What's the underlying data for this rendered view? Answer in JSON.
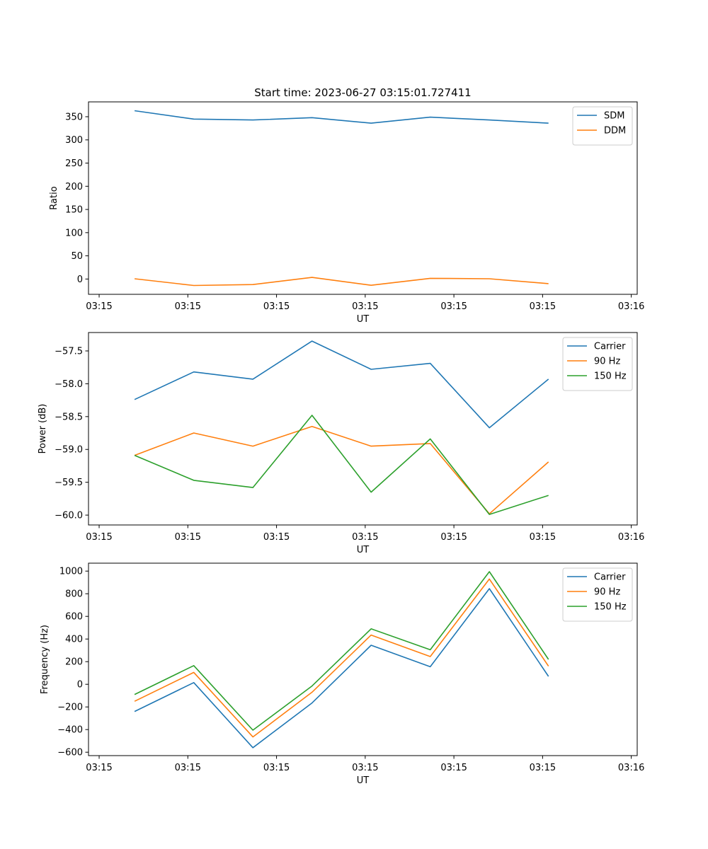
{
  "figure": {
    "title": "Start time: 2023-06-27 03:15:01.727411"
  },
  "chart_data": [
    {
      "type": "line",
      "title": "Start time: 2023-06-27 03:15:01.727411",
      "xlabel": "UT",
      "ylabel": "Ratio",
      "x": [
        0,
        1,
        2,
        3,
        4,
        5,
        6,
        7
      ],
      "xlim": [
        -0.78,
        8.5
      ],
      "xticks": [
        -0.6,
        0.9,
        2.4,
        3.9,
        5.4,
        6.9,
        8.4
      ],
      "xtick_labels": [
        "03:15",
        "03:15",
        "03:15",
        "03:15",
        "03:15",
        "03:15",
        "03:16"
      ],
      "ylim": [
        -33,
        382
      ],
      "yticks": [
        0,
        50,
        100,
        150,
        200,
        250,
        300,
        350
      ],
      "ytick_labels": [
        "0",
        "50",
        "100",
        "150",
        "200",
        "250",
        "300",
        "350"
      ],
      "legend_position": "top-right",
      "grid": false,
      "series": [
        {
          "name": "SDM",
          "color": "#1f77b4",
          "values": [
            363,
            345,
            343,
            348,
            336,
            349,
            343,
            336
          ]
        },
        {
          "name": "DDM",
          "color": "#ff7f0e",
          "values": [
            0.5,
            -14,
            -12,
            3.5,
            -13.5,
            1.5,
            0.5,
            -10
          ]
        }
      ]
    },
    {
      "type": "line",
      "title": "",
      "xlabel": "UT",
      "ylabel": "Power (dB)",
      "x": [
        0,
        1,
        2,
        3,
        4,
        5,
        6,
        7
      ],
      "xlim": [
        -0.78,
        8.5
      ],
      "xticks": [
        -0.6,
        0.9,
        2.4,
        3.9,
        5.4,
        6.9,
        8.4
      ],
      "xtick_labels": [
        "03:15",
        "03:15",
        "03:15",
        "03:15",
        "03:15",
        "03:15",
        "03:16"
      ],
      "ylim": [
        -60.15,
        -57.22
      ],
      "yticks": [
        -60.0,
        -59.5,
        -59.0,
        -58.5,
        -58.0,
        -57.5
      ],
      "ytick_labels": [
        "−60.0",
        "−59.5",
        "−59.0",
        "−58.5",
        "−58.0",
        "−57.5"
      ],
      "legend_position": "top-right",
      "grid": false,
      "series": [
        {
          "name": "Carrier",
          "color": "#1f77b4",
          "values": [
            -58.24,
            -57.82,
            -57.93,
            -57.35,
            -57.78,
            -57.69,
            -58.67,
            -57.93
          ]
        },
        {
          "name": "90 Hz",
          "color": "#ff7f0e",
          "values": [
            -59.09,
            -58.75,
            -58.95,
            -58.65,
            -58.95,
            -58.91,
            -59.98,
            -59.19
          ]
        },
        {
          "name": "150 Hz",
          "color": "#2ca02c",
          "values": [
            -59.09,
            -59.47,
            -59.58,
            -58.48,
            -59.65,
            -58.84,
            -59.99,
            -59.7
          ]
        }
      ]
    },
    {
      "type": "line",
      "title": "",
      "xlabel": "UT",
      "ylabel": "Frequency (Hz)",
      "x": [
        0,
        1,
        2,
        3,
        4,
        5,
        6,
        7
      ],
      "xlim": [
        -0.78,
        8.5
      ],
      "xticks": [
        -0.6,
        0.9,
        2.4,
        3.9,
        5.4,
        6.9,
        8.4
      ],
      "xtick_labels": [
        "03:15",
        "03:15",
        "03:15",
        "03:15",
        "03:15",
        "03:15",
        "03:16"
      ],
      "ylim": [
        -630,
        1070
      ],
      "yticks": [
        -600,
        -400,
        -200,
        0,
        200,
        400,
        600,
        800,
        1000
      ],
      "ytick_labels": [
        "−600",
        "−400",
        "−200",
        "0",
        "200",
        "400",
        "600",
        "800",
        "1000"
      ],
      "legend_position": "top-right",
      "grid": false,
      "series": [
        {
          "name": "Carrier",
          "color": "#1f77b4",
          "values": [
            -240,
            15,
            -560,
            -165,
            345,
            155,
            845,
            70
          ]
        },
        {
          "name": "90 Hz",
          "color": "#ff7f0e",
          "values": [
            -150,
            105,
            -465,
            -70,
            435,
            245,
            930,
            160
          ]
        },
        {
          "name": "150 Hz",
          "color": "#2ca02c",
          "values": [
            -90,
            165,
            -405,
            -15,
            490,
            305,
            995,
            220
          ]
        }
      ]
    }
  ]
}
